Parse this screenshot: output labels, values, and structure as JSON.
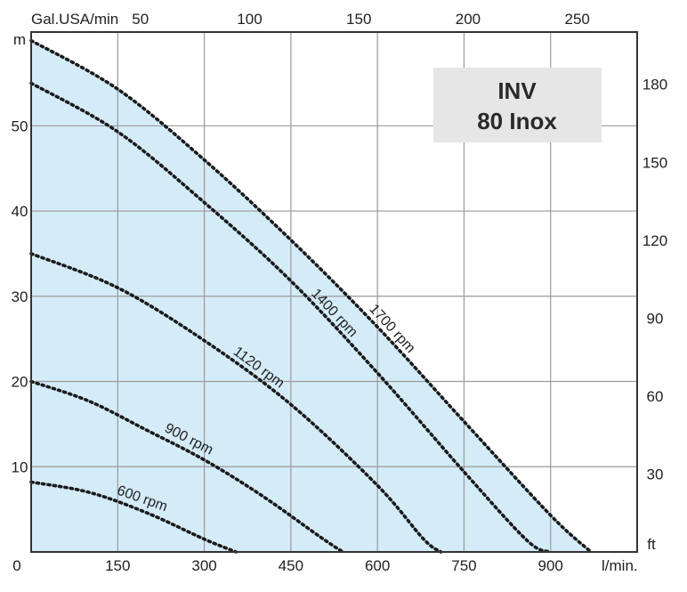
{
  "chart_data": {
    "type": "line",
    "title_box": {
      "line1": "INV",
      "line2": "80 Inox"
    },
    "x_unit": "l/min.",
    "y_unit": "m",
    "x_top_unit": "Gal.USA/min",
    "y_right_unit": "ft",
    "xlim": [
      0,
      1050
    ],
    "ylim": [
      0,
      61
    ],
    "x_ticks": [
      0,
      150,
      300,
      450,
      600,
      750,
      900
    ],
    "y_ticks": [
      10,
      20,
      30,
      40,
      50
    ],
    "x_top_ticks": [
      50,
      100,
      150,
      200,
      250
    ],
    "y_right_ticks": [
      30,
      60,
      90,
      120,
      150,
      180
    ],
    "envelope_color": "#d4ebf8",
    "series": [
      {
        "name": "600 rpm",
        "x": [
          0,
          100,
          200,
          300,
          355
        ],
        "y": [
          8.2,
          7.0,
          4.6,
          1.5,
          0
        ]
      },
      {
        "name": "900 rpm",
        "x": [
          0,
          100,
          200,
          300,
          400,
          500,
          540
        ],
        "y": [
          20,
          17.7,
          14.3,
          10.8,
          6.6,
          1.8,
          0
        ]
      },
      {
        "name": "1120 rpm",
        "x": [
          0,
          150,
          300,
          450,
          600,
          680,
          710
        ],
        "y": [
          35,
          31,
          24.8,
          17.3,
          7.8,
          1.5,
          0
        ]
      },
      {
        "name": "1400 rpm",
        "x": [
          0,
          150,
          300,
          450,
          600,
          750,
          860,
          900
        ],
        "y": [
          55,
          49.3,
          41,
          31.8,
          21,
          9.4,
          1.3,
          0
        ]
      },
      {
        "name": "1700 rpm",
        "x": [
          0,
          150,
          300,
          450,
          600,
          750,
          900,
          970
        ],
        "y": [
          60,
          54.3,
          46,
          36.6,
          26.4,
          15.3,
          4.3,
          0
        ]
      }
    ]
  }
}
